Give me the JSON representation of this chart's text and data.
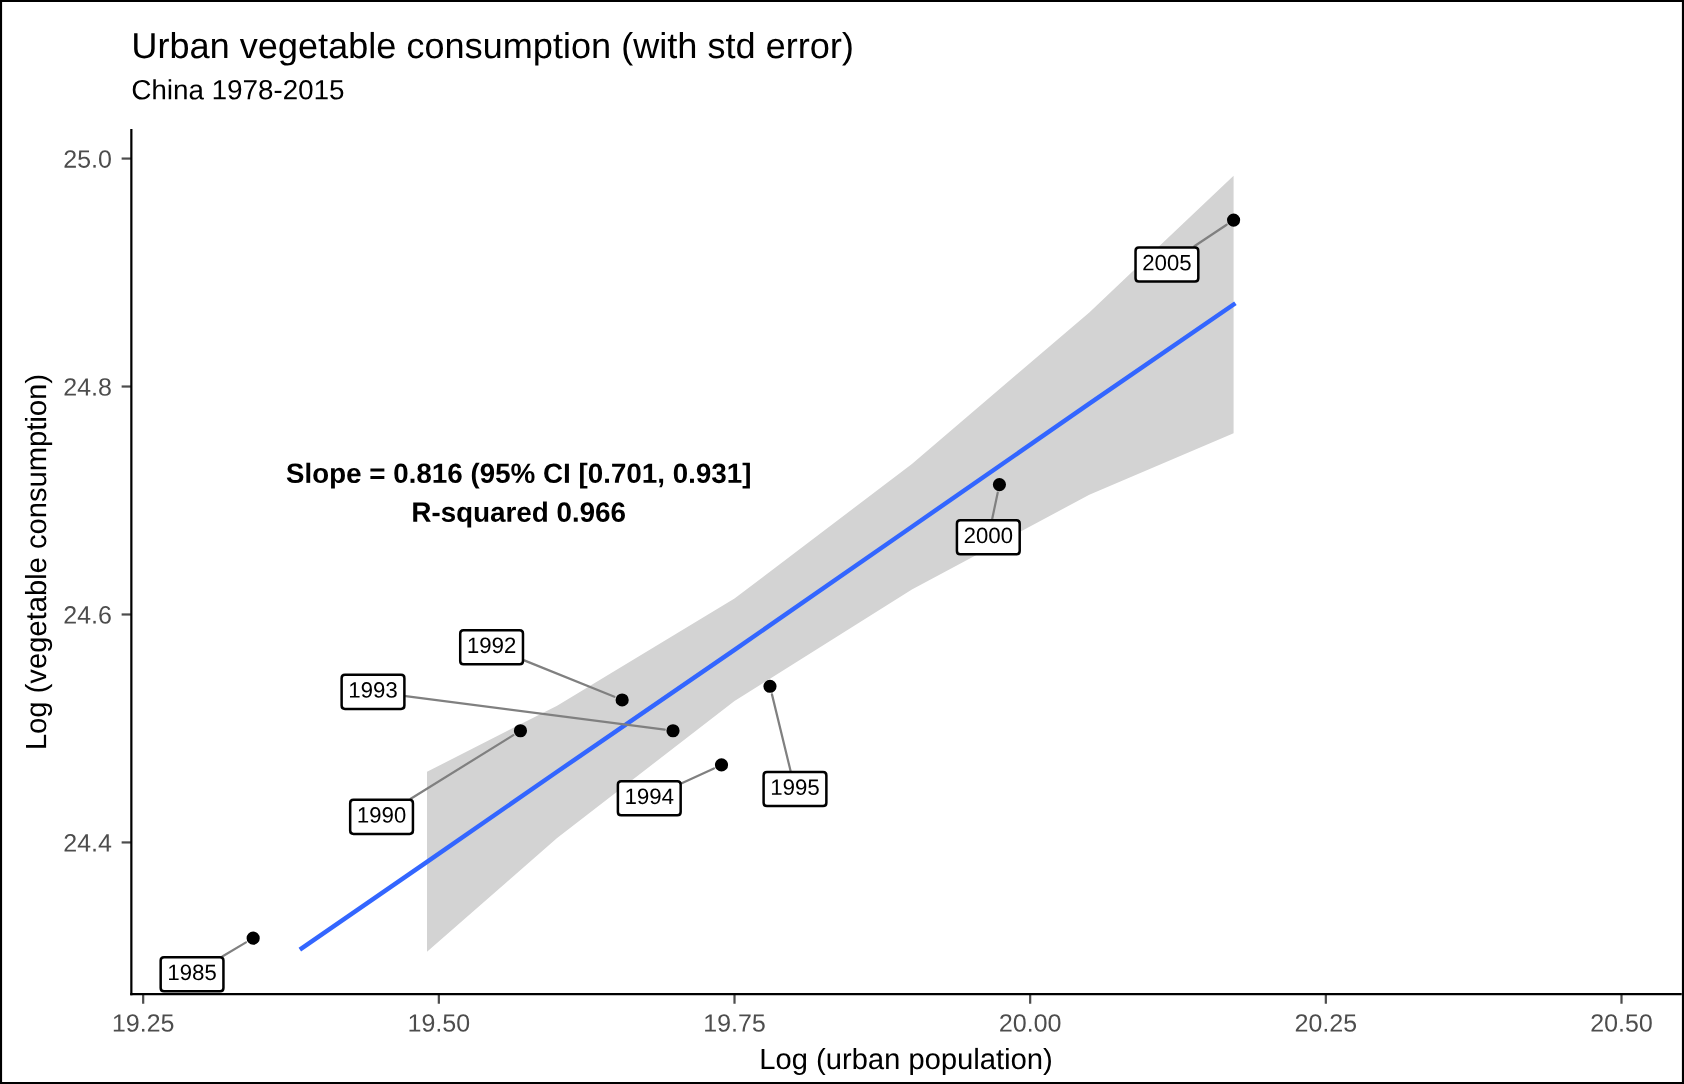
{
  "chart_data": {
    "type": "scatter",
    "title": "Urban vegetable consumption (with std error)",
    "subtitle": "China 1978-2015",
    "xlabel": "Log (urban population)",
    "ylabel": "Log (vegetable consumption)",
    "xlim": [
      19.24,
      20.55
    ],
    "xticks": [
      {
        "value": 19.25,
        "label": "19.25"
      },
      {
        "value": 19.5,
        "label": "19.50"
      },
      {
        "value": 19.75,
        "label": "19.75"
      },
      {
        "value": 20.0,
        "label": "20.00"
      },
      {
        "value": 20.25,
        "label": "20.25"
      },
      {
        "value": 20.5,
        "label": "20.50"
      }
    ],
    "ylim": [
      24.267,
      25.025
    ],
    "yticks": [
      {
        "value": 24.4,
        "label": "24.4"
      },
      {
        "value": 24.6,
        "label": "24.6"
      },
      {
        "value": 24.8,
        "label": "24.8"
      },
      {
        "value": 25.0,
        "label": "25.0"
      }
    ],
    "grid": false,
    "legend": false,
    "marker": "circle",
    "series": [
      {
        "color": "#000000",
        "x": [
          19.343,
          19.569,
          19.655,
          19.698,
          19.739,
          19.78,
          19.974,
          20.172
        ],
        "values": [
          24.316,
          24.498,
          24.525,
          24.498,
          24.468,
          24.537,
          24.714,
          24.946
        ]
      },
      {
        "type": "line",
        "color": "#3366ff",
        "marker": "none",
        "line_style": "solid",
        "x": [
          19.384,
          19.49,
          19.6,
          19.75,
          19.9,
          20.05,
          20.172
        ],
        "values": [
          24.307,
          24.383,
          24.462,
          24.569,
          24.677,
          24.785,
          24.872
        ],
        "lower": [
          null,
          24.304,
          24.404,
          24.524,
          24.622,
          24.705,
          24.759
        ],
        "upper": [
          null,
          24.462,
          24.52,
          24.614,
          24.732,
          24.865,
          24.985
        ]
      }
    ],
    "annotations": [
      {
        "text": "1985",
        "x": 19.343,
        "y": 24.316
      },
      {
        "text": "1990",
        "x": 19.569,
        "y": 24.498
      },
      {
        "text": "1992",
        "x": 19.655,
        "y": 24.525
      },
      {
        "text": "1993",
        "x": 19.698,
        "y": 24.498
      },
      {
        "text": "1994",
        "x": 19.739,
        "y": 24.468
      },
      {
        "text": "1995",
        "x": 19.78,
        "y": 24.537
      },
      {
        "text": "2000",
        "x": 19.974,
        "y": 24.714
      },
      {
        "text": "2005",
        "x": 20.172,
        "y": 24.946
      },
      "Slope = 0.816 (95% CI [0.701, 0.931]",
      "R-squared 0.966"
    ]
  }
}
